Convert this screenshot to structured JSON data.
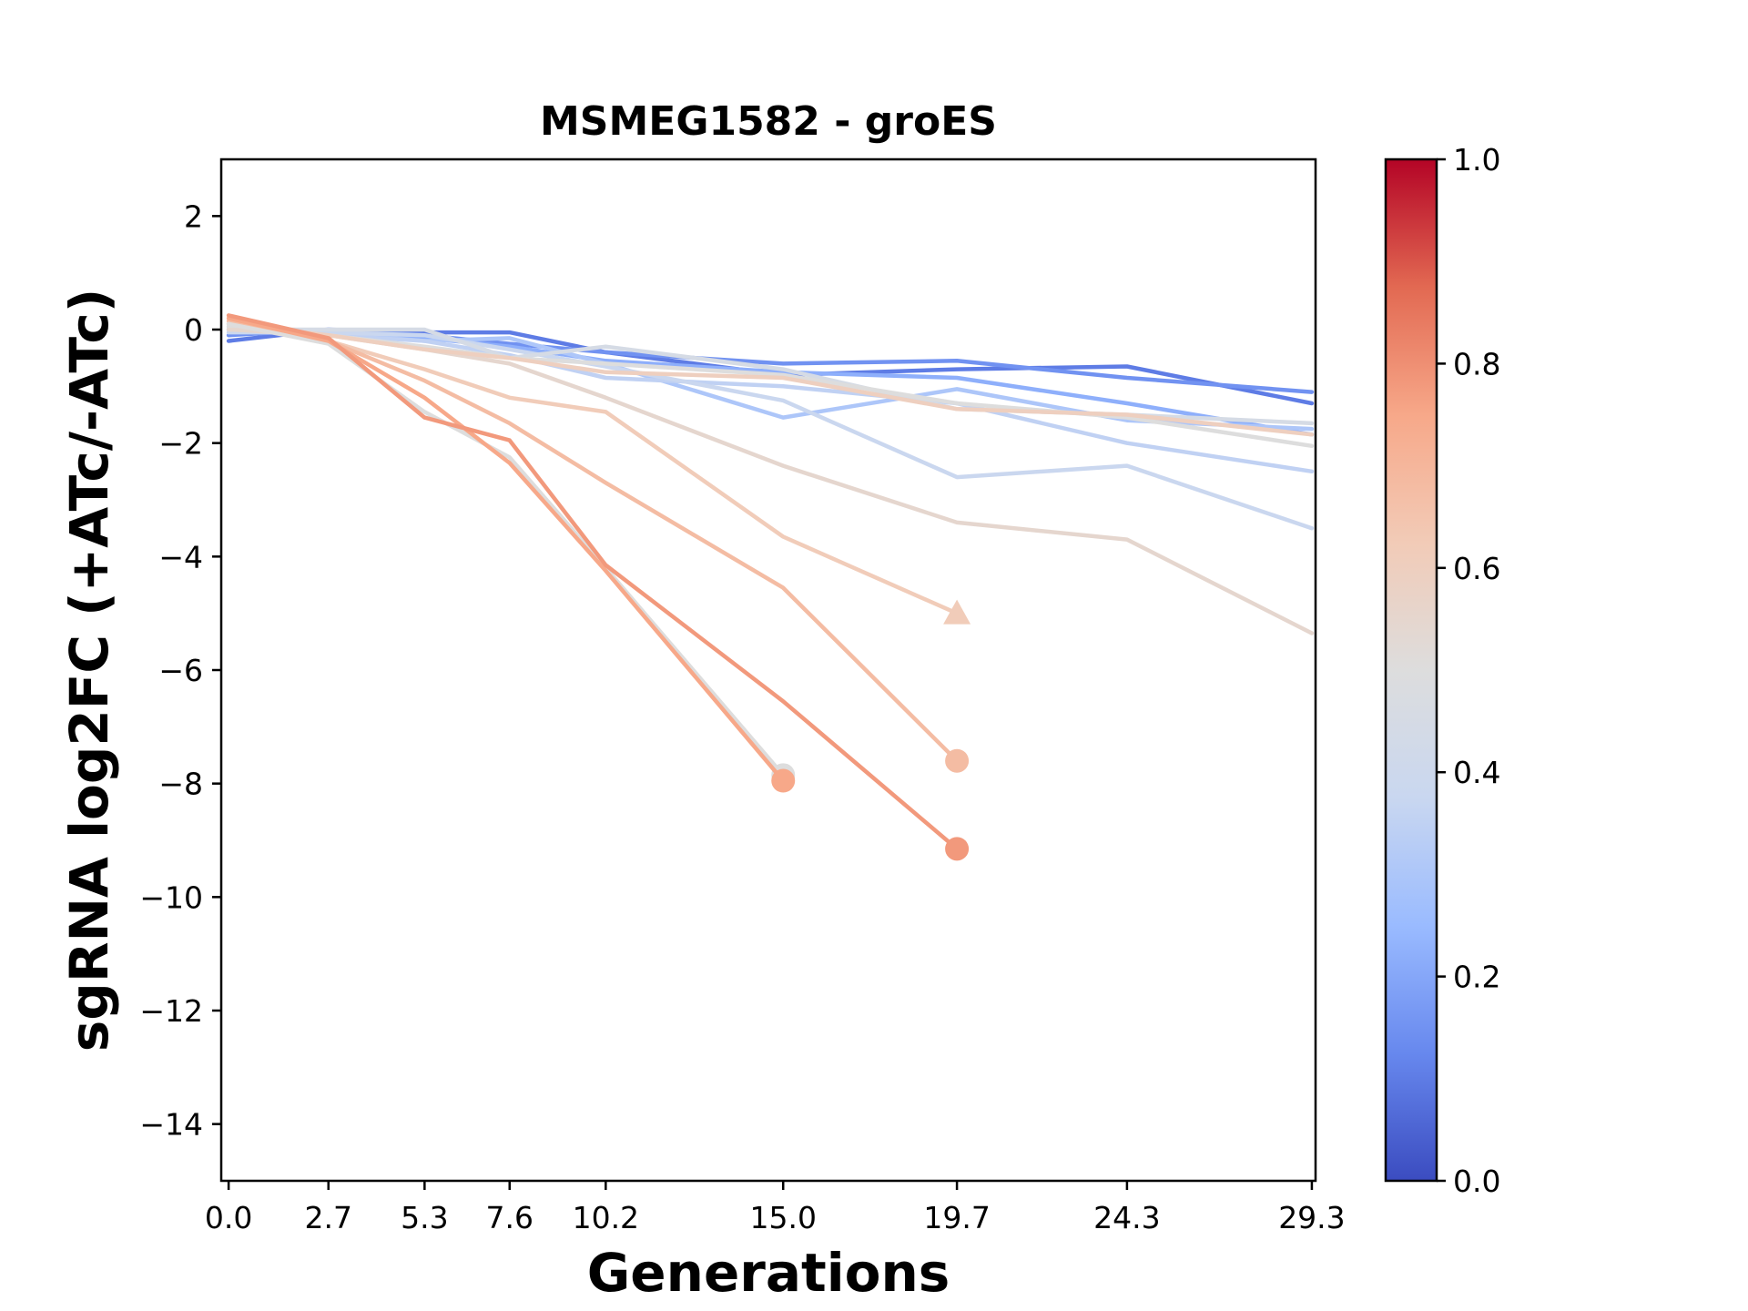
{
  "chart_data": {
    "type": "line",
    "title": "MSMEG1582 - groES",
    "xlabel": "Generations",
    "ylabel": "sgRNA log2FC (+ATc/-ATc)",
    "xlim": [
      -0.2,
      29.4
    ],
    "ylim": [
      -15,
      3
    ],
    "xticks": [
      0.0,
      2.7,
      5.3,
      7.6,
      10.2,
      15.0,
      19.7,
      24.3,
      29.3
    ],
    "xtick_labels": [
      "0.0",
      "2.7",
      "5.3",
      "7.6",
      "10.2",
      "15.0",
      "19.7",
      "24.3",
      "29.3"
    ],
    "yticks": [
      2,
      0,
      -2,
      -4,
      -6,
      -8,
      -10,
      -12,
      -14
    ],
    "ytick_labels": [
      "2",
      "0",
      "−2",
      "−4",
      "−6",
      "−8",
      "−10",
      "−12",
      "−14"
    ],
    "grid": false,
    "colorbar": {
      "colormap": "coolwarm",
      "range": [
        0.0,
        1.0
      ],
      "ticks": [
        0.0,
        0.2,
        0.4,
        0.6,
        0.8,
        1.0
      ],
      "tick_labels": [
        "0.0",
        "0.2",
        "0.4",
        "0.6",
        "0.8",
        "1.0"
      ],
      "stops": [
        "#3b4cc0",
        "#6788ee",
        "#9abbff",
        "#c9d7f0",
        "#dddddd",
        "#f2cbb7",
        "#f7a889",
        "#e26952",
        "#b40426"
      ]
    },
    "series": [
      {
        "color_value": 0.1,
        "x": [
          0.0,
          2.7,
          5.3,
          7.6,
          10.2,
          15.0,
          19.7,
          24.3,
          29.3
        ],
        "y": [
          -0.2,
          0.0,
          -0.05,
          -0.05,
          -0.4,
          -0.8,
          -0.7,
          -0.65,
          -1.3
        ],
        "end_marker": null
      },
      {
        "color_value": 0.15,
        "x": [
          0.0,
          2.7,
          5.3,
          7.6,
          10.2,
          15.0,
          19.7,
          24.3,
          29.3
        ],
        "y": [
          -0.1,
          0.0,
          -0.1,
          -0.25,
          -0.4,
          -0.6,
          -0.55,
          -0.85,
          -1.1
        ],
        "end_marker": null
      },
      {
        "color_value": 0.22,
        "x": [
          0.0,
          2.7,
          5.3,
          7.6,
          10.2,
          15.0,
          19.7,
          24.3,
          29.3
        ],
        "y": [
          0.0,
          -0.05,
          -0.15,
          -0.3,
          -0.55,
          -0.75,
          -0.85,
          -1.3,
          -1.85
        ],
        "end_marker": null
      },
      {
        "color_value": 0.3,
        "x": [
          0.0,
          2.7,
          5.3,
          7.6,
          10.2,
          15.0,
          19.7,
          24.3,
          29.3
        ],
        "y": [
          0.05,
          -0.05,
          -0.2,
          -0.15,
          -0.6,
          -1.55,
          -1.05,
          -1.6,
          -1.75
        ],
        "end_marker": null
      },
      {
        "color_value": 0.35,
        "x": [
          0.0,
          2.7,
          5.3,
          7.6,
          10.2,
          15.0,
          19.7,
          24.3,
          29.3
        ],
        "y": [
          0.0,
          -0.1,
          -0.2,
          -0.45,
          -0.85,
          -1.0,
          -1.3,
          -2.0,
          -2.5
        ],
        "end_marker": null
      },
      {
        "color_value": 0.38,
        "x": [
          0.0,
          2.7,
          5.3,
          7.6,
          10.2,
          15.0,
          19.7,
          24.3,
          29.3
        ],
        "y": [
          -0.05,
          -0.05,
          -0.1,
          -0.35,
          -0.65,
          -1.25,
          -2.6,
          -2.4,
          -3.5
        ],
        "end_marker": null
      },
      {
        "color_value": 0.45,
        "x": [
          0.0,
          2.7,
          5.3,
          7.6,
          10.2,
          15.0,
          19.7,
          24.3,
          29.3
        ],
        "y": [
          0.0,
          0.0,
          0.0,
          -0.5,
          -0.3,
          -0.7,
          -1.4,
          -1.5,
          -1.65
        ],
        "end_marker": null
      },
      {
        "color_value": 0.5,
        "x": [
          0.0,
          2.7,
          5.3,
          7.6,
          10.2,
          15.0,
          19.7,
          24.3,
          29.3
        ],
        "y": [
          0.05,
          -0.1,
          -0.3,
          -0.5,
          -0.6,
          -0.8,
          -1.3,
          -1.55,
          -2.05
        ],
        "end_marker": null
      },
      {
        "color_value": 0.55,
        "x": [
          0.0,
          2.7,
          5.3,
          7.6,
          10.2,
          15.0,
          19.7,
          24.3,
          29.3
        ],
        "y": [
          0.0,
          -0.1,
          -0.35,
          -0.6,
          -1.2,
          -2.4,
          -3.4,
          -3.7,
          -5.35
        ],
        "end_marker": null
      },
      {
        "color_value": 0.6,
        "x": [
          0.0,
          2.7,
          5.3,
          7.6,
          10.2,
          15.0,
          19.7,
          24.3,
          29.3
        ],
        "y": [
          0.1,
          -0.1,
          -0.35,
          -0.5,
          -0.75,
          -0.85,
          -1.4,
          -1.5,
          -1.85
        ],
        "end_marker": null
      },
      {
        "color_value": 0.62,
        "x": [
          0.0,
          2.7,
          5.3,
          7.6,
          10.2,
          15.0,
          19.7
        ],
        "y": [
          0.1,
          -0.2,
          -0.7,
          -1.2,
          -1.45,
          -3.65,
          -5.0
        ],
        "end_marker": "triangle"
      },
      {
        "color_value": 0.68,
        "x": [
          0.0,
          2.7,
          5.3,
          7.6,
          10.2,
          15.0,
          19.7
        ],
        "y": [
          0.15,
          -0.2,
          -0.9,
          -1.65,
          -2.7,
          -4.55,
          -7.6
        ],
        "end_marker": "circle"
      },
      {
        "color_value": 0.5,
        "x": [
          0.0,
          2.7,
          5.3,
          7.6,
          10.2,
          15.0
        ],
        "y": [
          0.1,
          -0.25,
          -1.45,
          -2.25,
          -4.2,
          -7.85
        ],
        "end_marker": "circle"
      },
      {
        "color_value": 0.75,
        "x": [
          0.0,
          2.7,
          5.3,
          7.6,
          10.2,
          15.0
        ],
        "y": [
          0.2,
          -0.2,
          -1.2,
          -2.35,
          -4.25,
          -7.95
        ],
        "end_marker": "circle"
      },
      {
        "color_value": 0.78,
        "x": [
          0.0,
          2.7,
          5.3,
          7.6,
          10.2,
          15.0,
          19.7
        ],
        "y": [
          0.25,
          -0.15,
          -1.55,
          -1.95,
          -4.15,
          -6.55,
          -9.15
        ],
        "end_marker": "circle"
      }
    ]
  }
}
